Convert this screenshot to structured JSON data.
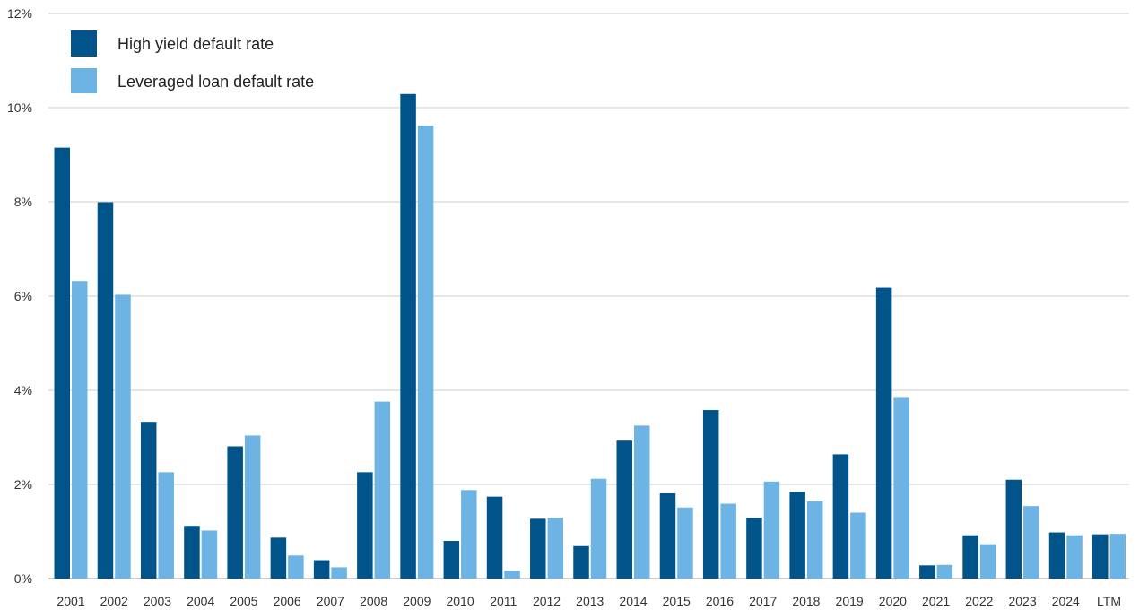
{
  "chart_data": {
    "type": "bar",
    "categories": [
      "2001",
      "2002",
      "2003",
      "2004",
      "2005",
      "2006",
      "2007",
      "2008",
      "2009",
      "2010",
      "2011",
      "2012",
      "2013",
      "2014",
      "2015",
      "2016",
      "2017",
      "2018",
      "2019",
      "2020",
      "2021",
      "2022",
      "2023",
      "2024",
      "LTM"
    ],
    "series": [
      {
        "name": "High yield default rate",
        "color": "#00548a",
        "values": [
          9.15,
          7.99,
          3.33,
          1.12,
          2.81,
          0.87,
          0.39,
          2.26,
          10.29,
          0.8,
          1.74,
          1.27,
          0.69,
          2.93,
          1.81,
          3.58,
          1.29,
          1.84,
          2.64,
          6.18,
          0.28,
          0.92,
          2.1,
          0.98,
          0.94
        ]
      },
      {
        "name": "Leveraged loan default rate",
        "color": "#6db3e3",
        "values": [
          6.32,
          6.03,
          2.26,
          1.02,
          3.04,
          0.49,
          0.24,
          3.76,
          9.62,
          1.88,
          0.17,
          1.29,
          2.12,
          3.25,
          1.51,
          1.59,
          2.06,
          1.64,
          1.4,
          3.84,
          0.29,
          0.73,
          1.54,
          0.92,
          0.95
        ]
      }
    ],
    "y_ticks": [
      "0%",
      "2%",
      "4%",
      "6%",
      "8%",
      "10%",
      "12%"
    ],
    "y_tick_values": [
      0,
      2,
      4,
      6,
      8,
      10,
      12
    ],
    "ylim": [
      0,
      12
    ],
    "grid": true,
    "legend_position": "top-left",
    "title": "",
    "xlabel": "",
    "ylabel": ""
  }
}
